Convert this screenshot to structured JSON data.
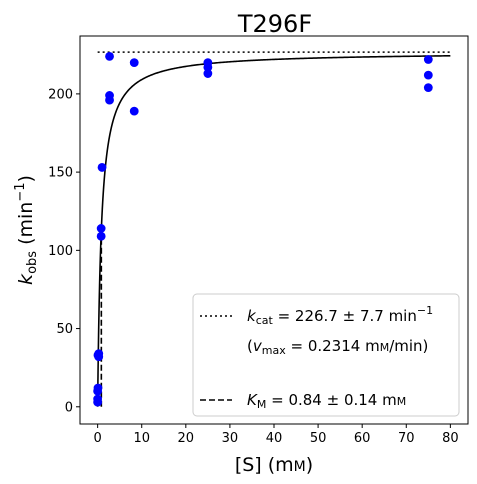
{
  "chart_data": {
    "type": "scatter",
    "title": "T296F",
    "xlabel": {
      "main": "[S] (m",
      "unit_sc": "M",
      "tail": ")"
    },
    "ylabel": {
      "k": "k",
      "sub": "obs",
      "unit": " (min",
      "sup": "−1",
      "tail": ")"
    },
    "xlim": [
      -4,
      84
    ],
    "ylim": [
      -11,
      237
    ],
    "xticks": [
      0,
      10,
      20,
      30,
      40,
      50,
      60,
      70,
      80
    ],
    "xtick_labels": [
      "0",
      "10",
      "20",
      "30",
      "40",
      "50",
      "60",
      "70",
      "80"
    ],
    "yticks": [
      0,
      50,
      100,
      150,
      200
    ],
    "ytick_labels": [
      "0",
      "50",
      "100",
      "150",
      "200"
    ],
    "grid": false,
    "legend_position": "lower-right",
    "colors": {
      "points": "#0000ff",
      "fit": "#000000",
      "reference_lines": "#000000"
    },
    "series": [
      {
        "kind": "points",
        "x": [
          0.0,
          0.0,
          0.0,
          0.08,
          0.08,
          0.25,
          0.25,
          0.8,
          0.8,
          1.0,
          2.7,
          2.7,
          2.7,
          8.3,
          8.3,
          25,
          25,
          25,
          75,
          75,
          75
        ],
        "y": [
          3,
          5,
          10,
          12,
          33,
          32,
          34,
          109,
          114,
          153,
          224,
          196,
          199,
          189,
          220,
          213,
          217,
          220,
          204,
          212,
          222
        ]
      },
      {
        "kind": "fit",
        "model": "michaelis-menten",
        "kcat": 226.7,
        "KM": 0.84,
        "x_range": [
          0,
          80
        ]
      },
      {
        "kind": "kcat-line",
        "style": "dotted",
        "y": 226.7,
        "x_range": [
          0,
          80
        ],
        "legend": {
          "symbol": "k",
          "sub": "cat",
          "text": " = 226.7 ± 7.7 min",
          "sup": "−1"
        }
      },
      {
        "kind": "vmax-note",
        "legend": {
          "open": "(",
          "symbol": "v",
          "sub": "max",
          "text": " = 0.2314 m",
          "unit_sc": "M",
          "tail": "/min)"
        }
      },
      {
        "kind": "KM-line",
        "style": "dashed",
        "x": 0.84,
        "y_range": [
          0,
          113.35
        ],
        "legend": {
          "symbol": "K",
          "sub": "M",
          "text": " = 0.84 ± 0.14 m",
          "unit_sc": "M"
        }
      }
    ]
  }
}
